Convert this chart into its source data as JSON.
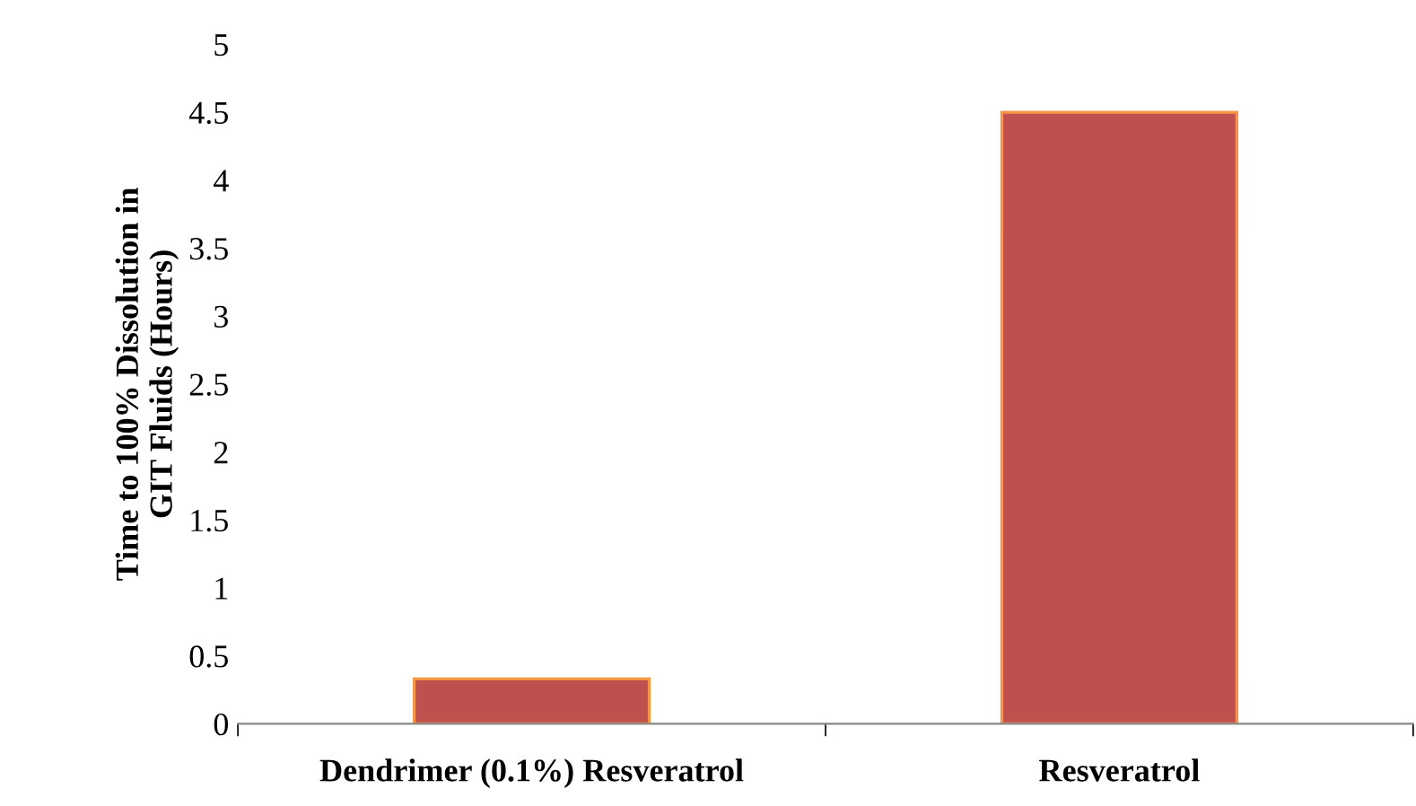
{
  "chart_data": {
    "type": "bar",
    "ylabel": "Time to 100% Dissolution in\nGIT Fluids (Hours)",
    "categories": [
      "Dendrimer (0.1%) Resveratrol",
      "Resveratrol"
    ],
    "values": [
      0.33,
      4.5
    ],
    "color": "#c0504d",
    "ylim": [
      0,
      5
    ],
    "yticks": [
      0,
      0.5,
      1,
      1.5,
      2,
      2.5,
      3,
      3.5,
      4,
      4.5,
      5
    ],
    "grid": false
  }
}
